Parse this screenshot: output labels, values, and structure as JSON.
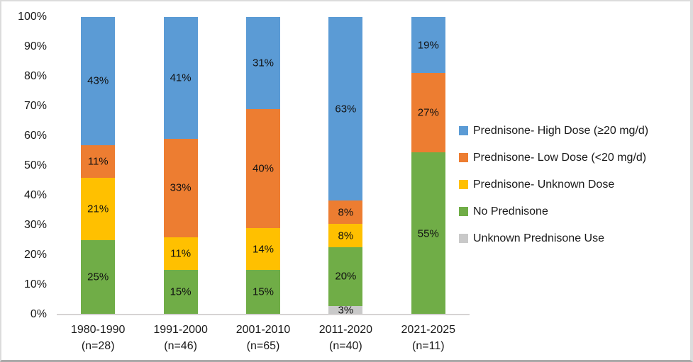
{
  "chart_data": {
    "type": "bar",
    "stacking": "percent",
    "orientation": "vertical",
    "grid": false,
    "legend_position": "right",
    "background_color": "#ffffff",
    "axis_line_color": "#d6d3d3",
    "categories": [
      {
        "label": "1980-1990",
        "n_label": "(n=28)"
      },
      {
        "label": "1991-2000",
        "n_label": "(n=46)"
      },
      {
        "label": "2001-2010",
        "n_label": "(n=65)"
      },
      {
        "label": "2011-2020",
        "n_label": "(n=40)"
      },
      {
        "label": "2021-2025",
        "n_label": "(n=11)"
      }
    ],
    "y_axis": {
      "min": 0,
      "max": 100,
      "ticks": [
        "100%",
        "90%",
        "80%",
        "70%",
        "60%",
        "50%",
        "40%",
        "30%",
        "20%",
        "10%",
        "0%"
      ]
    },
    "series": [
      {
        "name": "Prednisone- High Dose (≥20 mg/d)",
        "color": "#5B9BD5",
        "values_pct": [
          43,
          41,
          31,
          63,
          19
        ],
        "labels": [
          "43%",
          "41%",
          "31%",
          "63%",
          "19%"
        ]
      },
      {
        "name": "Prednisone- Low Dose (<20 mg/d)",
        "color": "#ED7D31",
        "values_pct": [
          11,
          33,
          40,
          8,
          27
        ],
        "labels": [
          "11%",
          "33%",
          "40%",
          "8%",
          "27%"
        ]
      },
      {
        "name": "Prednisone- Unknown Dose",
        "color": "#FFC000",
        "values_pct": [
          21,
          11,
          14,
          8,
          0
        ],
        "labels": [
          "21%",
          "11%",
          "14%",
          "8%",
          ""
        ]
      },
      {
        "name": "No Prednisone",
        "color": "#70AD47",
        "values_pct": [
          25,
          15,
          15,
          20,
          55
        ],
        "labels": [
          "25%",
          "15%",
          "15%",
          "20%",
          "55%"
        ]
      },
      {
        "name": "Unknown Prednisone Use",
        "color": "#C9C9C9",
        "values_pct": [
          0,
          0,
          0,
          3,
          0
        ],
        "labels": [
          "",
          "",
          "",
          "3%",
          ""
        ]
      }
    ]
  }
}
